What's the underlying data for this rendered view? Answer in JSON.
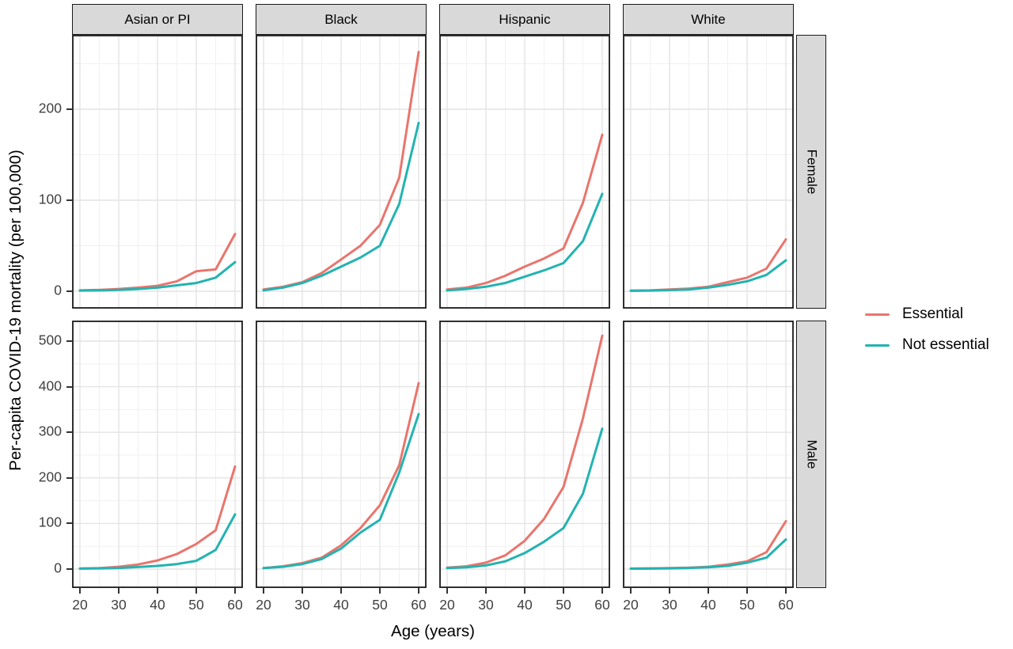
{
  "chart_data": {
    "type": "line",
    "title": "",
    "xlabel": "Age (years)",
    "ylabel": "Per-capita COVID-19 mortality (per 100,000)",
    "x": [
      20,
      25,
      30,
      35,
      40,
      45,
      50,
      55,
      60
    ],
    "x_tick_labels": [
      "20",
      "30",
      "40",
      "50",
      "60"
    ],
    "col_facets": [
      "Asian or PI",
      "Black",
      "Hispanic",
      "White"
    ],
    "row_facets": [
      "Female",
      "Male"
    ],
    "grid": "on",
    "legend": {
      "position": "right",
      "entries": [
        {
          "label": "Essential",
          "color": "#E9756D"
        },
        {
          "label": "Not essential",
          "color": "#23B3B1"
        }
      ]
    },
    "rows": [
      {
        "facet": "Female",
        "ylim": [
          0,
          278
        ],
        "yticks": [
          0,
          100,
          200
        ],
        "yticks_minor": [
          50,
          150,
          250
        ],
        "panels": [
          {
            "col": "Asian or PI",
            "series": [
              {
                "name": "Essential",
                "values": [
                  1,
                  1.5,
                  2.5,
                  4,
                  6,
                  11,
                  22,
                  24,
                  63
                ]
              },
              {
                "name": "Not essential",
                "values": [
                  0.8,
                  1,
                  1.5,
                  2.5,
                  4,
                  6.5,
                  9,
                  15,
                  32
                ]
              }
            ]
          },
          {
            "col": "Black",
            "series": [
              {
                "name": "Essential",
                "values": [
                  2,
                  5,
                  10,
                  20,
                  35,
                  50,
                  73,
                  125,
                  263
                ]
              },
              {
                "name": "Not essential",
                "values": [
                  1,
                  4,
                  9,
                  17,
                  27,
                  37,
                  50,
                  96,
                  185
                ]
              }
            ]
          },
          {
            "col": "Hispanic",
            "series": [
              {
                "name": "Essential",
                "values": [
                  2,
                  4,
                  9,
                  17,
                  27,
                  36,
                  47,
                  97,
                  172
                ]
              },
              {
                "name": "Not essential",
                "values": [
                  1,
                  2.5,
                  5,
                  9,
                  16,
                  23,
                  31,
                  55,
                  107
                ]
              }
            ]
          },
          {
            "col": "White",
            "series": [
              {
                "name": "Essential",
                "values": [
                  0.7,
                  1,
                  2,
                  3,
                  5,
                  10,
                  15,
                  25,
                  57
                ]
              },
              {
                "name": "Not essential",
                "values": [
                  0.5,
                  0.8,
                  1.3,
                  2,
                  4,
                  7,
                  11,
                  18,
                  34
                ]
              }
            ]
          }
        ]
      },
      {
        "facet": "Male",
        "ylim": [
          0,
          545
        ],
        "yticks": [
          0,
          100,
          200,
          300,
          400,
          500
        ],
        "yticks_minor": [
          50,
          150,
          250,
          350,
          450
        ],
        "panels": [
          {
            "col": "Asian or PI",
            "series": [
              {
                "name": "Essential",
                "values": [
                  1,
                  2,
                  5,
                  10,
                  19,
                  33,
                  55,
                  85,
                  225
                ]
              },
              {
                "name": "Not essential",
                "values": [
                  1,
                  1.5,
                  2.5,
                  4.5,
                  7,
                  11,
                  18,
                  42,
                  120
                ]
              }
            ]
          },
          {
            "col": "Black",
            "series": [
              {
                "name": "Essential",
                "values": [
                  2,
                  6,
                  13,
                  25,
                  52,
                  90,
                  140,
                  228,
                  408
                ]
              },
              {
                "name": "Not essential",
                "values": [
                  2,
                  5,
                  11,
                  22,
                  45,
                  80,
                  108,
                  212,
                  340
                ]
              }
            ]
          },
          {
            "col": "Hispanic",
            "series": [
              {
                "name": "Essential",
                "values": [
                  3,
                  6,
                  14,
                  30,
                  62,
                  110,
                  180,
                  330,
                  512
                ]
              },
              {
                "name": "Not essential",
                "values": [
                  2,
                  4,
                  8,
                  17,
                  35,
                  60,
                  90,
                  165,
                  308
                ]
              }
            ]
          },
          {
            "col": "White",
            "series": [
              {
                "name": "Essential",
                "values": [
                  1,
                  1.5,
                  2,
                  3,
                  5,
                  10,
                  17,
                  37,
                  105
                ]
              },
              {
                "name": "Not essential",
                "values": [
                  0.8,
                  1,
                  1.5,
                  2.5,
                  4,
                  7,
                  14,
                  25,
                  65
                ]
              }
            ]
          }
        ]
      }
    ],
    "style": {
      "strip_fill": "#d9d9d9",
      "panel_border": "#1a1a1a",
      "grid_major": "#e4e4e4",
      "grid_minor": "#f1f1f1",
      "tick_label_color": "#404040"
    }
  }
}
